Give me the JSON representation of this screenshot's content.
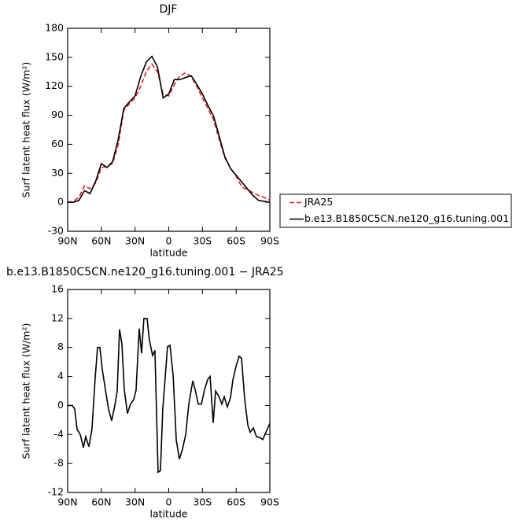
{
  "chart_data": [
    {
      "type": "line",
      "title": "DJF",
      "xlabel": "latitude",
      "ylabel": "Surf latent heat flux (W/m²)",
      "x": [
        90,
        85,
        80,
        75,
        70,
        65,
        60,
        55,
        50,
        45,
        40,
        35,
        30,
        25,
        20,
        15,
        10,
        5,
        0,
        -5,
        -10,
        -15,
        -20,
        -25,
        -30,
        -35,
        -40,
        -45,
        -50,
        -55,
        -60,
        -65,
        -70,
        -75,
        -80,
        -85,
        -90
      ],
      "series": [
        {
          "name": "JRA25",
          "color": "#e8201c",
          "dash": true,
          "values": [
            0,
            1,
            5,
            17,
            14,
            20,
            36,
            37,
            40,
            60,
            95,
            102,
            108,
            120,
            135,
            143,
            135,
            112,
            110,
            122,
            131,
            134,
            130,
            120,
            108,
            97,
            85,
            65,
            46,
            35,
            27,
            16,
            13,
            10,
            7,
            5,
            2
          ]
        },
        {
          "name": "b.e13.B1850C5CN.ne120_g16.tuning.001",
          "color": "#000000",
          "dash": false,
          "values": [
            0,
            0,
            2,
            12,
            9,
            22,
            40,
            36,
            42,
            65,
            97,
            104,
            110,
            130,
            145,
            151,
            140,
            108,
            112,
            127,
            127,
            129,
            131,
            122,
            112,
            100,
            89,
            68,
            47,
            35,
            28,
            21,
            14,
            7,
            2,
            1,
            0
          ]
        }
      ],
      "xlim": [
        90,
        -90
      ],
      "xticks": [
        {
          "value": 90,
          "label": "90N"
        },
        {
          "value": 60,
          "label": "60N"
        },
        {
          "value": 30,
          "label": "30N"
        },
        0,
        {
          "value": -30,
          "label": "30S"
        },
        {
          "value": -60,
          "label": "60S"
        },
        {
          "value": -90,
          "label": "90S"
        }
      ],
      "ylim": [
        -30,
        180
      ],
      "yticks": [
        -30,
        0,
        30,
        60,
        90,
        120,
        150,
        180
      ],
      "legend": "right"
    },
    {
      "type": "line",
      "title": "b.e13.B1850C5CN.ne120_g16.tuning.001 − JRA25",
      "xlabel": "latitude",
      "ylabel": "Surf latent heat flux (W/m²)",
      "x": [
        90,
        85.8,
        83.7,
        81.6,
        78.8,
        76,
        73.9,
        71.1,
        68.3,
        65.5,
        63.4,
        61.3,
        59.2,
        56.4,
        53.6,
        50.8,
        48,
        45.9,
        43.8,
        41.7,
        39.6,
        36.8,
        34,
        31.2,
        29.1,
        26.3,
        24.2,
        22.1,
        19.3,
        17.2,
        14.4,
        12.3,
        9.5,
        7.4,
        5.3,
        1.1,
        -1.1,
        -3.9,
        -6.7,
        -9.5,
        -12.3,
        -15.1,
        -17.9,
        -21.4,
        -23.5,
        -26.3,
        -29.1,
        -31.9,
        -34.7,
        -36.8,
        -39.6,
        -41.7,
        -44.5,
        -47.3,
        -49.4,
        -52.2,
        -55,
        -57.1,
        -59.9,
        -62.7,
        -64.8,
        -67.6,
        -70.4,
        -72.5,
        -75.3,
        -78.1,
        -80.9,
        -83.7,
        -86.5,
        -90
      ],
      "values": [
        0,
        0,
        -0.5,
        -3.3,
        -4,
        -5.8,
        -4.3,
        -5.7,
        -3.2,
        3.8,
        8,
        8,
        5,
        2.2,
        -0.5,
        -2.1,
        0,
        2,
        10.5,
        8.5,
        2.2,
        -1.1,
        0.2,
        0.8,
        2.1,
        10.6,
        7.2,
        12,
        12,
        9,
        6.9,
        7.6,
        -9.2,
        -9,
        -0.5,
        8.1,
        8.3,
        4.2,
        -4.8,
        -7.4,
        -6,
        -4,
        0.2,
        3.4,
        2.2,
        0.2,
        0.2,
        2.2,
        3.6,
        4,
        -2.4,
        2,
        1.3,
        0.2,
        1.2,
        -0.2,
        1.1,
        3.5,
        5.4,
        6.8,
        6.5,
        0.9,
        -2.7,
        -3.7,
        -3.1,
        -4.3,
        -4.4,
        -4.7,
        -3.7,
        -2.5
      ],
      "color": "#000000",
      "xlim": [
        90,
        -90
      ],
      "xticks": [
        {
          "value": 90,
          "label": "90N"
        },
        {
          "value": 60,
          "label": "60N"
        },
        {
          "value": 30,
          "label": "30N"
        },
        0,
        {
          "value": -30,
          "label": "30S"
        },
        {
          "value": -60,
          "label": "60S"
        },
        {
          "value": -90,
          "label": "90S"
        }
      ],
      "ylim": [
        -12,
        16
      ],
      "yticks": [
        -12,
        -8,
        -4,
        0,
        4,
        8,
        12,
        16
      ]
    }
  ]
}
